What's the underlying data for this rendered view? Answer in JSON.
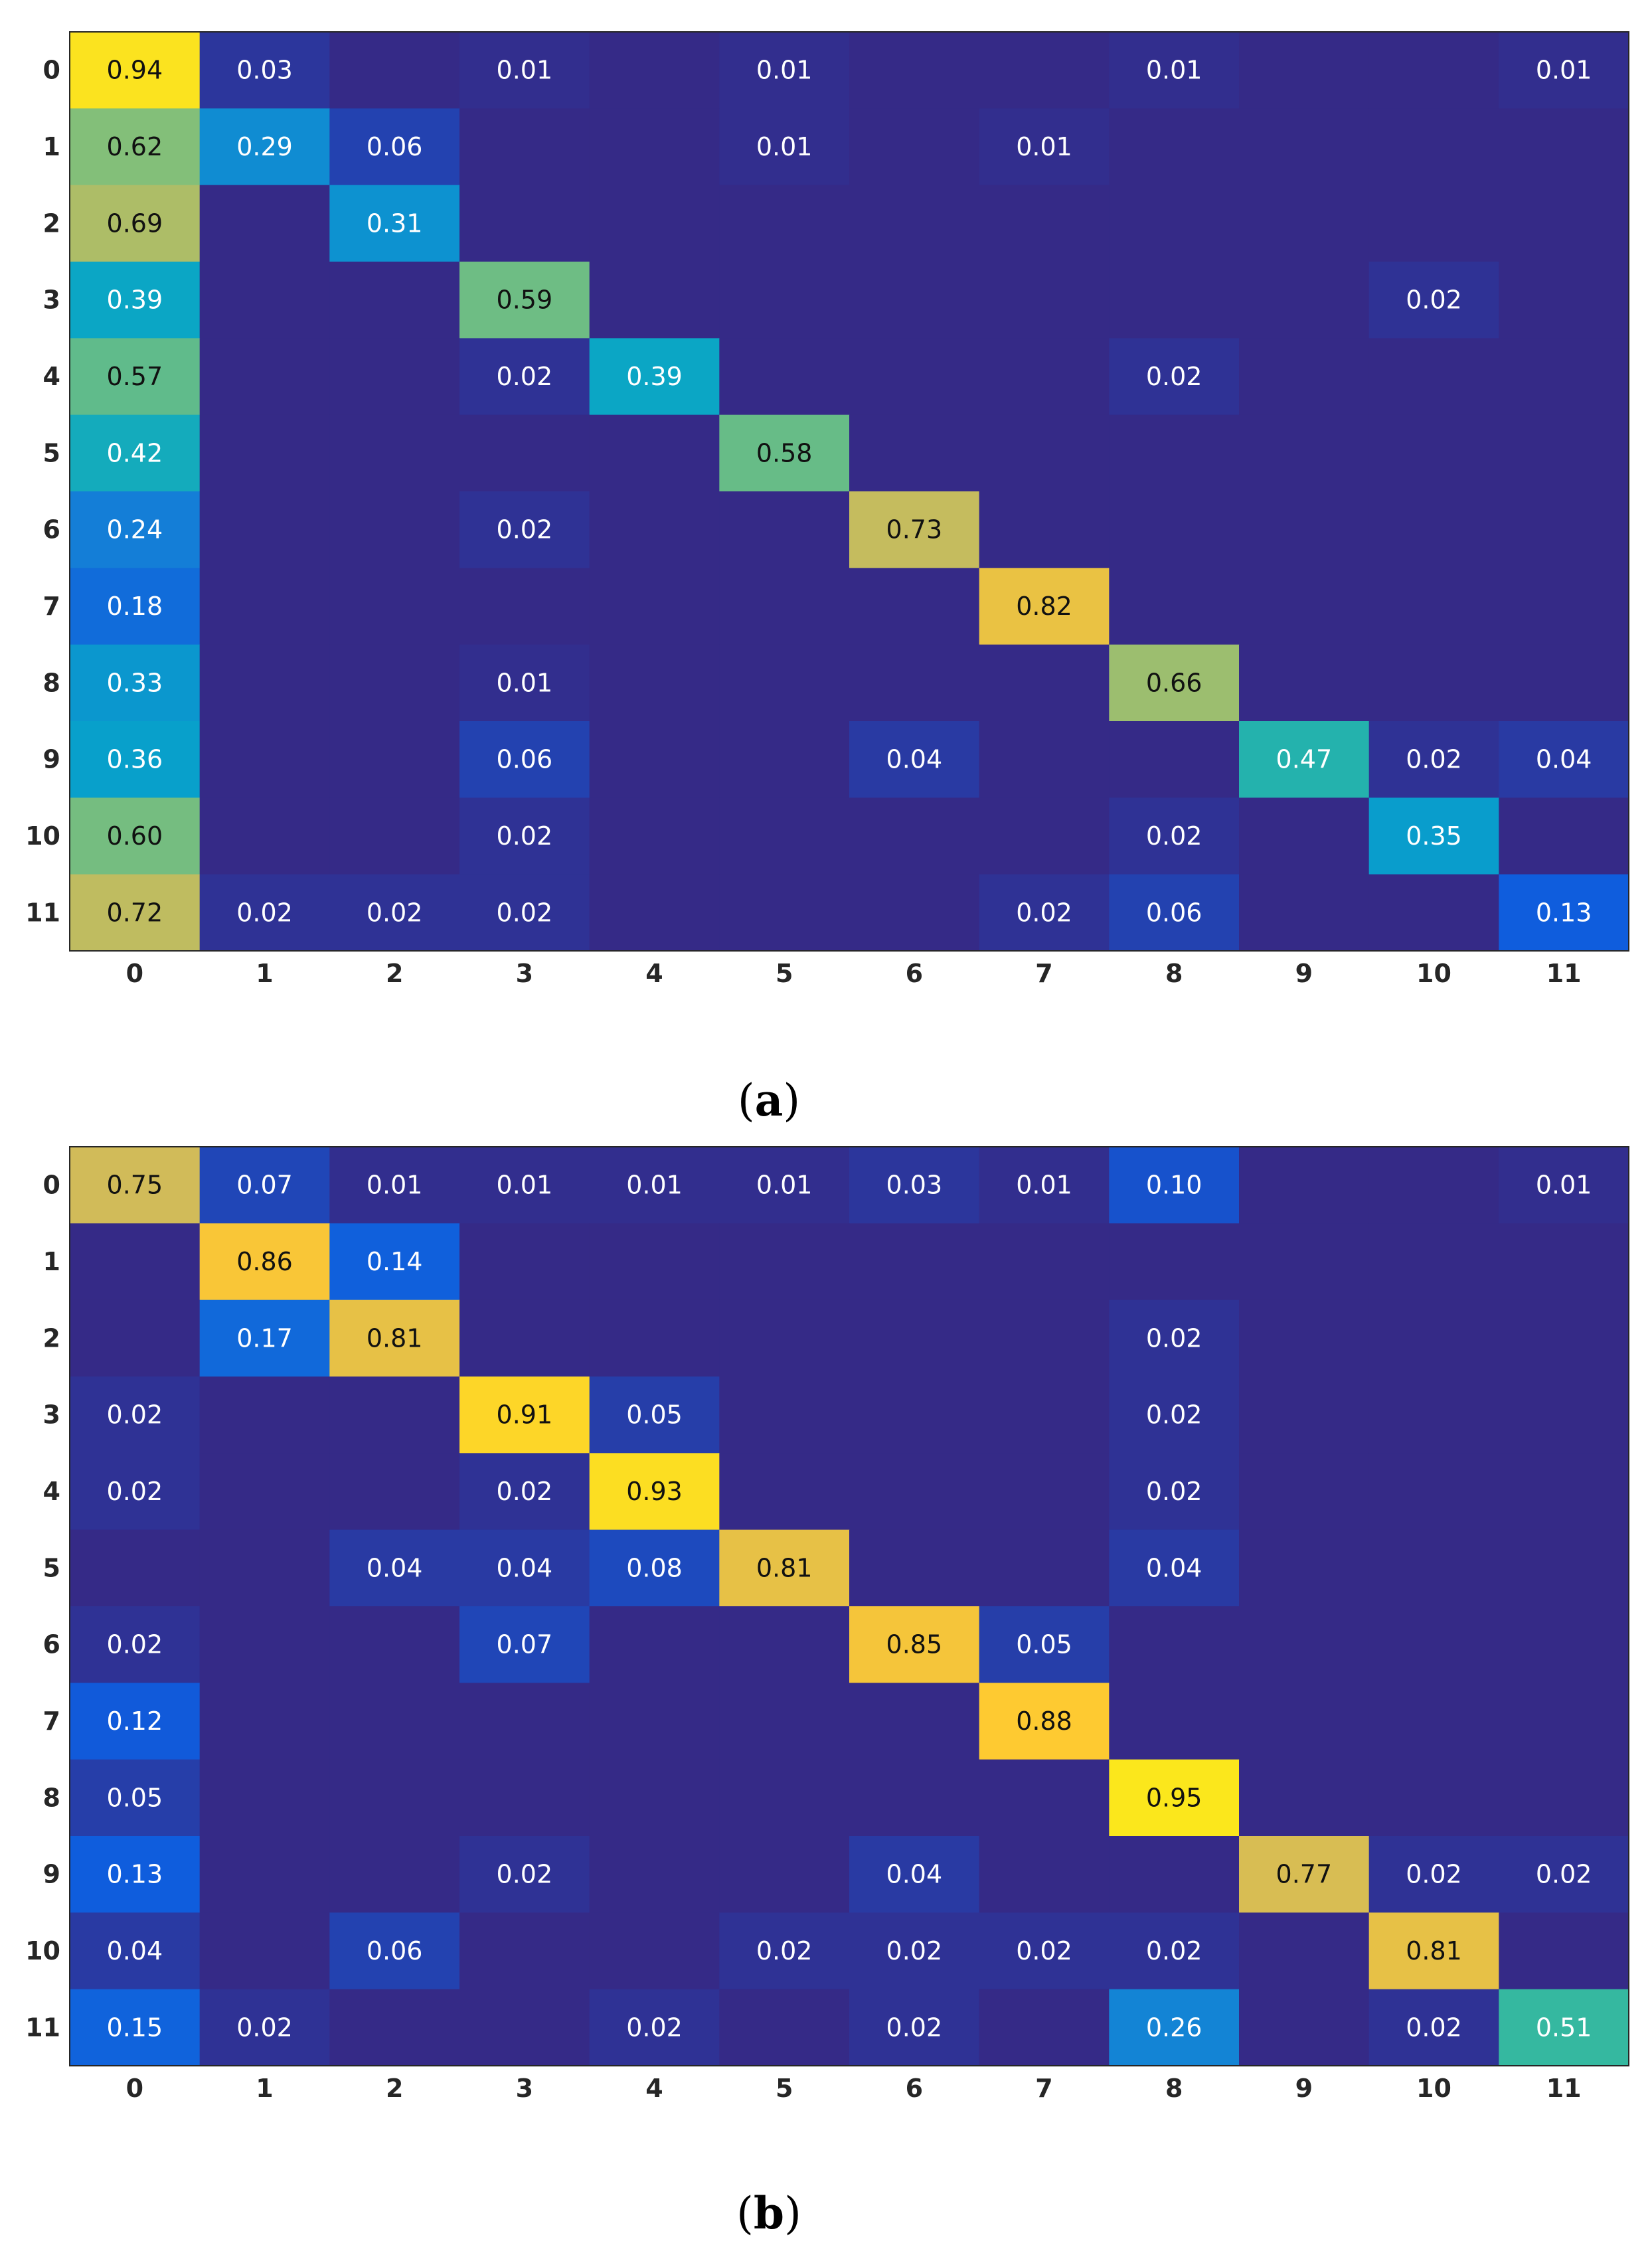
{
  "colors": {
    "background": "#ffffff",
    "axis_frame": "#262626",
    "colormap": [
      "#352a87",
      "#0f5cdd",
      "#1481d6",
      "#06a4ca",
      "#2eb7a4",
      "#87bf77",
      "#d1bb59",
      "#fec832",
      "#f9fb0e"
    ],
    "light_text": "#ffffff",
    "dark_text": "#111111"
  },
  "chart_data": [
    {
      "type": "heatmap",
      "panel_label": "a",
      "caption": {
        "open": "(",
        "letter": "a",
        "close": ")"
      },
      "rows": [
        "0",
        "1",
        "2",
        "3",
        "4",
        "5",
        "6",
        "7",
        "8",
        "9",
        "10",
        "11"
      ],
      "columns": [
        "0",
        "1",
        "2",
        "3",
        "4",
        "5",
        "6",
        "7",
        "8",
        "9",
        "10",
        "11"
      ],
      "value_range": [
        0,
        1
      ],
      "values": [
        [
          0.94,
          0.03,
          null,
          0.01,
          null,
          0.01,
          null,
          null,
          0.01,
          null,
          null,
          0.01
        ],
        [
          0.62,
          0.29,
          0.06,
          null,
          null,
          0.01,
          null,
          0.01,
          null,
          null,
          null,
          null
        ],
        [
          0.69,
          null,
          0.31,
          null,
          null,
          null,
          null,
          null,
          null,
          null,
          null,
          null
        ],
        [
          0.39,
          null,
          null,
          0.59,
          null,
          null,
          null,
          null,
          null,
          null,
          0.02,
          null
        ],
        [
          0.57,
          null,
          null,
          0.02,
          0.39,
          null,
          null,
          null,
          0.02,
          null,
          null,
          null
        ],
        [
          0.42,
          null,
          null,
          null,
          null,
          0.58,
          null,
          null,
          null,
          null,
          null,
          null
        ],
        [
          0.24,
          null,
          null,
          0.02,
          null,
          null,
          0.73,
          null,
          null,
          null,
          null,
          null
        ],
        [
          0.18,
          null,
          null,
          null,
          null,
          null,
          null,
          0.82,
          null,
          null,
          null,
          null
        ],
        [
          0.33,
          null,
          null,
          0.01,
          null,
          null,
          null,
          null,
          0.66,
          null,
          null,
          null
        ],
        [
          0.36,
          null,
          null,
          0.06,
          null,
          null,
          0.04,
          null,
          null,
          0.47,
          0.02,
          0.04
        ],
        [
          0.6,
          null,
          null,
          0.02,
          null,
          null,
          null,
          null,
          0.02,
          null,
          0.35,
          null
        ],
        [
          0.72,
          0.02,
          0.02,
          0.02,
          null,
          null,
          null,
          0.02,
          0.06,
          null,
          null,
          0.13
        ]
      ],
      "value_labels": [
        [
          "0.94",
          "0.03",
          "",
          "0.01",
          "",
          "0.01",
          "",
          "",
          "0.01",
          "",
          "",
          "0.01"
        ],
        [
          "0.62",
          "0.29",
          "0.06",
          "",
          "",
          "0.01",
          "",
          "0.01",
          "",
          "",
          "",
          ""
        ],
        [
          "0.69",
          "",
          "0.31",
          "",
          "",
          "",
          "",
          "",
          "",
          "",
          "",
          ""
        ],
        [
          "0.39",
          "",
          "",
          "0.59",
          "",
          "",
          "",
          "",
          "",
          "",
          "0.02",
          ""
        ],
        [
          "0.57",
          "",
          "",
          "0.02",
          "0.39",
          "",
          "",
          "",
          "0.02",
          "",
          "",
          ""
        ],
        [
          "0.42",
          "",
          "",
          "",
          "",
          "0.58",
          "",
          "",
          "",
          "",
          "",
          ""
        ],
        [
          "0.24",
          "",
          "",
          "0.02",
          "",
          "",
          "0.73",
          "",
          "",
          "",
          "",
          ""
        ],
        [
          "0.18",
          "",
          "",
          "",
          "",
          "",
          "",
          "0.82",
          "",
          "",
          "",
          ""
        ],
        [
          "0.33",
          "",
          "",
          "0.01",
          "",
          "",
          "",
          "",
          "0.66",
          "",
          "",
          ""
        ],
        [
          "0.36",
          "",
          "",
          "0.06",
          "",
          "",
          "0.04",
          "",
          "",
          "0.47",
          "0.02",
          "0.04"
        ],
        [
          "0.60",
          "",
          "",
          "0.02",
          "",
          "",
          "",
          "",
          "0.02",
          "",
          "0.35",
          ""
        ],
        [
          "0.72",
          "0.02",
          "0.02",
          "0.02",
          "",
          "",
          "",
          "0.02",
          "0.06",
          "",
          "",
          "0.13"
        ]
      ]
    },
    {
      "type": "heatmap",
      "panel_label": "b",
      "caption": {
        "open": "(",
        "letter": "b",
        "close": ")"
      },
      "rows": [
        "0",
        "1",
        "2",
        "3",
        "4",
        "5",
        "6",
        "7",
        "8",
        "9",
        "10",
        "11"
      ],
      "columns": [
        "0",
        "1",
        "2",
        "3",
        "4",
        "5",
        "6",
        "7",
        "8",
        "9",
        "10",
        "11"
      ],
      "value_range": [
        0,
        1
      ],
      "values": [
        [
          0.75,
          0.07,
          0.01,
          0.01,
          0.01,
          0.01,
          0.03,
          0.01,
          0.1,
          null,
          null,
          0.01
        ],
        [
          null,
          0.86,
          0.14,
          null,
          null,
          null,
          null,
          null,
          null,
          null,
          null,
          null
        ],
        [
          null,
          0.17,
          0.81,
          null,
          null,
          null,
          null,
          null,
          0.02,
          null,
          null,
          null
        ],
        [
          0.02,
          null,
          null,
          0.91,
          0.05,
          null,
          null,
          null,
          0.02,
          null,
          null,
          null
        ],
        [
          0.02,
          null,
          null,
          0.02,
          0.93,
          null,
          null,
          null,
          0.02,
          null,
          null,
          null
        ],
        [
          null,
          null,
          0.04,
          0.04,
          0.08,
          0.81,
          null,
          null,
          0.04,
          null,
          null,
          null
        ],
        [
          0.02,
          null,
          null,
          0.07,
          null,
          null,
          0.85,
          0.05,
          null,
          null,
          null,
          null
        ],
        [
          0.12,
          null,
          null,
          null,
          null,
          null,
          null,
          0.88,
          null,
          null,
          null,
          null
        ],
        [
          0.05,
          null,
          null,
          null,
          null,
          null,
          null,
          null,
          0.95,
          null,
          null,
          null
        ],
        [
          0.13,
          null,
          null,
          0.02,
          null,
          null,
          0.04,
          null,
          null,
          0.77,
          0.02,
          0.02
        ],
        [
          0.04,
          null,
          0.06,
          null,
          null,
          0.02,
          0.02,
          0.02,
          0.02,
          null,
          0.81,
          null
        ],
        [
          0.15,
          0.02,
          null,
          null,
          0.02,
          null,
          0.02,
          null,
          0.26,
          null,
          0.02,
          0.51
        ]
      ],
      "value_labels": [
        [
          "0.75",
          "0.07",
          "0.01",
          "0.01",
          "0.01",
          "0.01",
          "0.03",
          "0.01",
          "0.10",
          "",
          "",
          "0.01"
        ],
        [
          "",
          "0.86",
          "0.14",
          "",
          "",
          "",
          "",
          "",
          "",
          "",
          "",
          ""
        ],
        [
          "",
          "0.17",
          "0.81",
          "",
          "",
          "",
          "",
          "",
          "0.02",
          "",
          "",
          ""
        ],
        [
          "0.02",
          "",
          "",
          "0.91",
          "0.05",
          "",
          "",
          "",
          "0.02",
          "",
          "",
          ""
        ],
        [
          "0.02",
          "",
          "",
          "0.02",
          "0.93",
          "",
          "",
          "",
          "0.02",
          "",
          "",
          ""
        ],
        [
          "",
          "",
          "0.04",
          "0.04",
          "0.08",
          "0.81",
          "",
          "",
          "0.04",
          "",
          "",
          ""
        ],
        [
          "0.02",
          "",
          "",
          "0.07",
          "",
          "",
          "0.85",
          "0.05",
          "",
          "",
          "",
          ""
        ],
        [
          "0.12",
          "",
          "",
          "",
          "",
          "",
          "",
          "0.88",
          "",
          "",
          "",
          ""
        ],
        [
          "0.05",
          "",
          "",
          "",
          "",
          "",
          "",
          "",
          "0.95",
          "",
          "",
          ""
        ],
        [
          "0.13",
          "",
          "",
          "0.02",
          "",
          "",
          "0.04",
          "",
          "",
          "0.77",
          "0.02",
          "0.02"
        ],
        [
          "0.04",
          "",
          "0.06",
          "",
          "",
          "0.02",
          "0.02",
          "0.02",
          "0.02",
          "",
          "0.81",
          ""
        ],
        [
          "0.15",
          "0.02",
          "",
          "",
          "0.02",
          "",
          "0.02",
          "",
          "0.26",
          "",
          "0.02",
          "0.51"
        ]
      ]
    }
  ]
}
